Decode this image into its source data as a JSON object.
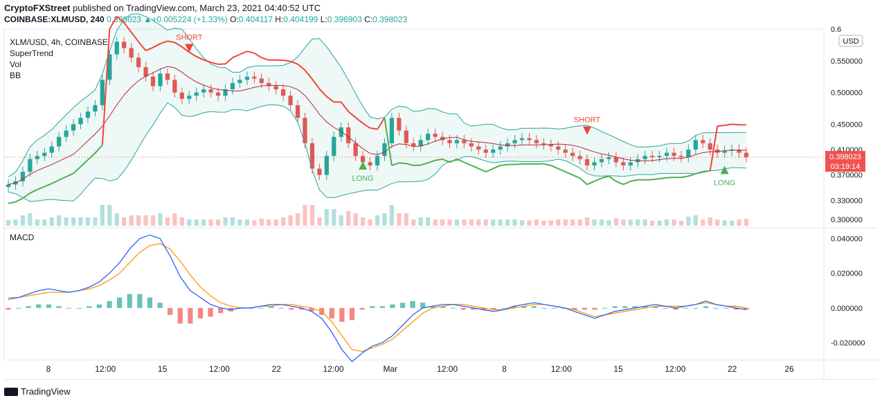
{
  "header": {
    "published": {
      "author": "CryptoFXStreet",
      "text": " published on TradingView.com, March 23, 2021 04:40:52 UTC"
    },
    "symbol_line": "COINBASE:XLMUSD, 240",
    "change": "+0.005224 (+1.33%)",
    "ohlc": [
      {
        "label": "O:",
        "value": "0.404117"
      },
      {
        "label": "H:",
        "value": "0.404199"
      },
      {
        "label": "L:",
        "value": "0.396903"
      },
      {
        "label": "C:",
        "value": "0.398023"
      }
    ],
    "last_value": "0.398023"
  },
  "legend": [
    "XLM/USD, 4h, COINBASE",
    "SuperTrend",
    "Vol",
    "BB"
  ],
  "macd_label": "MACD",
  "currency": "USD",
  "price_box": {
    "price": "0.398023",
    "countdown": "03:19:14"
  },
  "footer": {
    "brand": "TradingView"
  },
  "colors": {
    "up": "#26a69a",
    "down": "#ef5350",
    "supertrend_up": "#4caf50",
    "supertrend_down": "#f44336",
    "bb": "#26a69a",
    "bb_basis": "#b22833",
    "macd": "#2962ff",
    "signal": "#ff9800"
  },
  "chart_data": [
    {
      "type": "line",
      "title": "XLM/USD, 4h, COINBASE",
      "ylim": [
        0.29,
        0.6
      ],
      "y_ticks": [
        "0.300000",
        "0.330000",
        "0.370000",
        "0.410000",
        "0.450000",
        "0.500000",
        "0.550000",
        "0.6"
      ],
      "y_tick_values": [
        0.3,
        0.33,
        0.37,
        0.41,
        0.45,
        0.5,
        0.55,
        0.6
      ],
      "x_ticks": [
        "8",
        "12:00",
        "15",
        "12:00",
        "22",
        "12:00",
        "Mar",
        "12:00",
        "8",
        "12:00",
        "15",
        "12:00",
        "22",
        "26"
      ],
      "close": [
        0.355,
        0.36,
        0.375,
        0.395,
        0.4,
        0.405,
        0.415,
        0.43,
        0.44,
        0.45,
        0.46,
        0.47,
        0.48,
        0.52,
        0.56,
        0.58,
        0.57,
        0.555,
        0.54,
        0.525,
        0.51,
        0.53,
        0.52,
        0.5,
        0.49,
        0.495,
        0.5,
        0.505,
        0.5,
        0.495,
        0.505,
        0.515,
        0.52,
        0.525,
        0.522,
        0.515,
        0.51,
        0.505,
        0.495,
        0.48,
        0.46,
        0.42,
        0.38,
        0.37,
        0.4,
        0.43,
        0.445,
        0.42,
        0.4,
        0.39,
        0.385,
        0.4,
        0.42,
        0.46,
        0.44,
        0.42,
        0.415,
        0.425,
        0.435,
        0.43,
        0.425,
        0.42,
        0.425,
        0.42,
        0.415,
        0.41,
        0.405,
        0.41,
        0.415,
        0.42,
        0.425,
        0.428,
        0.425,
        0.42,
        0.418,
        0.415,
        0.41,
        0.405,
        0.4,
        0.395,
        0.385,
        0.39,
        0.395,
        0.398,
        0.39,
        0.385,
        0.39,
        0.395,
        0.4,
        0.398,
        0.4,
        0.405,
        0.4,
        0.398,
        0.41,
        0.425,
        0.42,
        0.41,
        0.405,
        0.408,
        0.41,
        0.405,
        0.398
      ],
      "series": [
        {
          "name": "SuperTrend",
          "values": []
        },
        {
          "name": "Vol",
          "values": []
        },
        {
          "name": "BB",
          "values": []
        }
      ],
      "annotations": [
        {
          "text": "SHORT",
          "index": 31,
          "price": 0.57
        },
        {
          "text": "LONG",
          "index": 62,
          "price": 0.385
        },
        {
          "text": "SHORT",
          "index": 101,
          "price": 0.44
        },
        {
          "text": "LONG",
          "index": 124,
          "price": 0.378
        }
      ]
    },
    {
      "type": "line",
      "title": "MACD",
      "ylim": [
        -0.03,
        0.045
      ],
      "y_ticks": [
        "-0.020000",
        "0.000000",
        "0.020000",
        "0.040000"
      ],
      "y_tick_values": [
        -0.02,
        0.0,
        0.02,
        0.04
      ],
      "series": [
        {
          "name": "MACD",
          "values": [
            0.005,
            0.006,
            0.008,
            0.01,
            0.011,
            0.01,
            0.009,
            0.01,
            0.012,
            0.015,
            0.02,
            0.026,
            0.034,
            0.04,
            0.042,
            0.04,
            0.03,
            0.018,
            0.01,
            0.006,
            0.002,
            0.0,
            -0.001,
            0.0,
            0.0,
            0.001,
            0.002,
            0.002,
            0.001,
            0.0,
            -0.002,
            -0.006,
            -0.014,
            -0.024,
            -0.031,
            -0.026,
            -0.022,
            -0.02,
            -0.016,
            -0.01,
            -0.004,
            0.0,
            0.001,
            0.002,
            0.002,
            0.001,
            0.0,
            -0.001,
            -0.002,
            -0.001,
            0.001,
            0.002,
            0.003,
            0.002,
            0.001,
            0.0,
            -0.002,
            -0.004,
            -0.006,
            -0.004,
            -0.002,
            -0.001,
            0.0,
            0.001,
            0.002,
            0.001,
            0.0,
            0.001,
            0.002,
            0.004,
            0.002,
            0.001,
            0.0,
            -0.001
          ]
        },
        {
          "name": "Signal",
          "values": [
            0.006,
            0.006,
            0.007,
            0.008,
            0.009,
            0.009,
            0.009,
            0.01,
            0.011,
            0.013,
            0.016,
            0.02,
            0.026,
            0.032,
            0.036,
            0.037,
            0.034,
            0.027,
            0.019,
            0.012,
            0.007,
            0.003,
            0.001,
            0.0,
            0.0,
            0.001,
            0.001,
            0.002,
            0.002,
            0.001,
            0.0,
            -0.002,
            -0.008,
            -0.016,
            -0.024,
            -0.025,
            -0.023,
            -0.021,
            -0.018,
            -0.013,
            -0.008,
            -0.003,
            0.0,
            0.001,
            0.002,
            0.002,
            0.001,
            0.0,
            -0.001,
            -0.001,
            0.0,
            0.001,
            0.002,
            0.002,
            0.001,
            0.0,
            -0.001,
            -0.003,
            -0.005,
            -0.004,
            -0.003,
            -0.002,
            -0.001,
            0.0,
            0.001,
            0.001,
            0.001,
            0.001,
            0.002,
            0.003,
            0.002,
            0.001,
            0.001,
            0.0
          ]
        }
      ]
    }
  ]
}
